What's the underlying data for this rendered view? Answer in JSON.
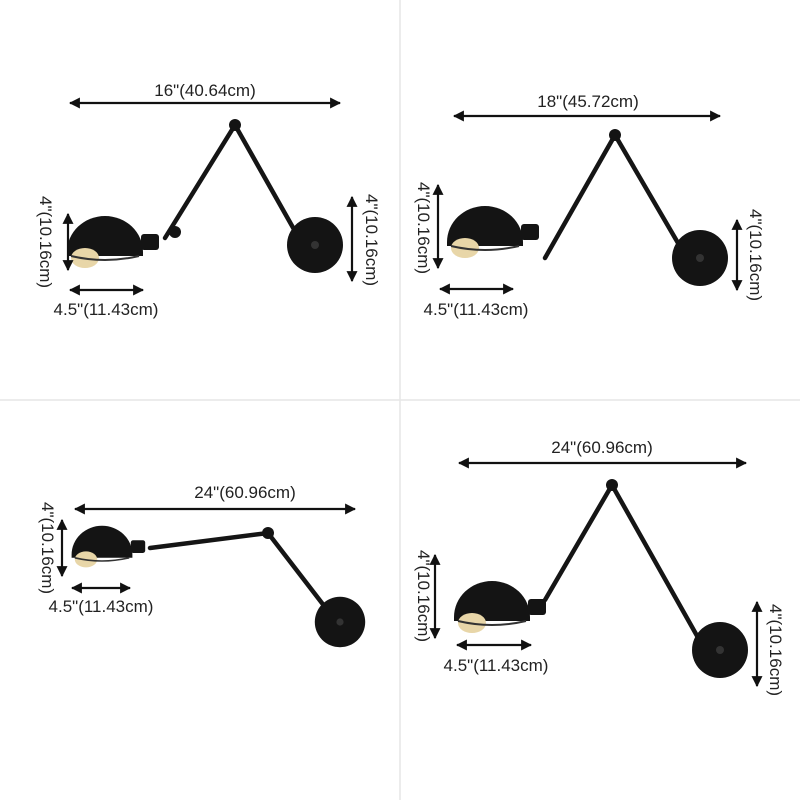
{
  "colors": {
    "lamp": "#141414",
    "divider": "#e6e6e6",
    "text": "#222222"
  },
  "panels": [
    {
      "name": "16-inch-arm",
      "width_label": "16\"(40.64cm)",
      "shade_height_label": "4\"(10.16cm)",
      "plate_height_label": "4\"(10.16cm)",
      "shade_width_label": "4.5\"(11.43cm)"
    },
    {
      "name": "18-inch-arm",
      "width_label": "18\"(45.72cm)",
      "shade_height_label": "4\"(10.16cm)",
      "plate_height_label": "4\"(10.16cm)",
      "shade_width_label": "4.5\"(11.43cm)"
    },
    {
      "name": "24-inch-arm-extended",
      "width_label": "24\"(60.96cm)",
      "shade_height_label": "4\"(10.16cm)",
      "shade_width_label": "4.5\"(11.43cm)"
    },
    {
      "name": "24-inch-arm-folded",
      "width_label": "24\"(60.96cm)",
      "shade_height_label": "4\"(10.16cm)",
      "plate_height_label": "4\"(10.16cm)",
      "shade_width_label": "4.5\"(11.43cm)"
    }
  ]
}
